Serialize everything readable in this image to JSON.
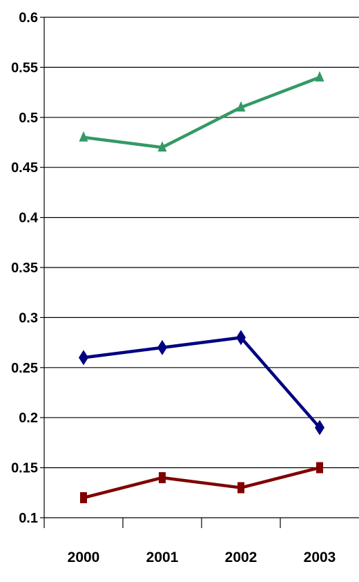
{
  "chart_data": {
    "type": "line",
    "title": "",
    "xlabel": "",
    "ylabel": "",
    "categories": [
      "2000",
      "2001",
      "2002",
      "2003"
    ],
    "ylim": [
      0.1,
      0.6
    ],
    "yticks": [
      0.1,
      0.15,
      0.2,
      0.25,
      0.3,
      0.35,
      0.4,
      0.45,
      0.5,
      0.55,
      0.6
    ],
    "ytick_labels": [
      "0.1",
      "0.15",
      "0.2",
      "0.25",
      "0.3",
      "0.35",
      "0.4",
      "0.45",
      "0.5",
      "0.55",
      "0.6"
    ],
    "grid": true,
    "legend": "none",
    "series": [
      {
        "values": [
          0.48,
          0.47,
          0.51,
          0.54
        ],
        "color": "#339966",
        "marker": "triangle"
      },
      {
        "values": [
          0.26,
          0.27,
          0.28,
          0.19
        ],
        "color": "#000080",
        "marker": "diamond"
      },
      {
        "values": [
          0.12,
          0.14,
          0.13,
          0.15
        ],
        "color": "#800000",
        "marker": "square"
      }
    ]
  }
}
